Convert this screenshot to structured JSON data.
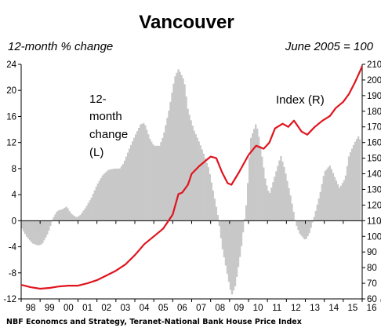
{
  "chart_data": {
    "type": "bar+line",
    "title": "Vancouver",
    "left_axis_label": "12-month % change",
    "right_axis_label": "June 2005 = 100",
    "source": "NBF Economcs and Strategy, Teranet-National Bank House Price Index",
    "annotations": {
      "bars": [
        "12-",
        "month",
        "change",
        "(L)"
      ],
      "line": "Index (R)"
    },
    "x_tick_labels": [
      "98",
      "99",
      "00",
      "01",
      "02",
      "03",
      "04",
      "05",
      "06",
      "07",
      "08",
      "09",
      "10",
      "11",
      "12",
      "13",
      "14",
      "15",
      "16"
    ],
    "x_range": [
      1998.0,
      2016.0
    ],
    "y_left": {
      "range": [
        -12,
        24
      ],
      "ticks": [
        -12,
        -8,
        -4,
        0,
        4,
        8,
        12,
        16,
        20,
        24
      ]
    },
    "y_right": {
      "range": [
        60,
        210
      ],
      "ticks": [
        60,
        70,
        80,
        90,
        100,
        110,
        120,
        130,
        140,
        150,
        160,
        170,
        180,
        190,
        200,
        210
      ]
    },
    "grid": false,
    "colors": {
      "bars": "#c8c8c8",
      "line": "#e0141e",
      "axis": "#000000"
    },
    "series": [
      {
        "name": "12-month change",
        "axis": "left",
        "kind": "bar",
        "points": [
          [
            1998.0,
            -1.0
          ],
          [
            1998.3,
            -2.5
          ],
          [
            1998.6,
            -3.5
          ],
          [
            1998.9,
            -3.8
          ],
          [
            1999.1,
            -3.6
          ],
          [
            1999.4,
            -2.0
          ],
          [
            1999.7,
            0.5
          ],
          [
            1999.9,
            1.5
          ],
          [
            2000.2,
            1.8
          ],
          [
            2000.4,
            2.2
          ],
          [
            2000.6,
            1.2
          ],
          [
            2000.9,
            0.5
          ],
          [
            2001.1,
            0.8
          ],
          [
            2001.4,
            2.0
          ],
          [
            2001.7,
            3.5
          ],
          [
            2002.0,
            5.5
          ],
          [
            2002.3,
            7.0
          ],
          [
            2002.6,
            7.8
          ],
          [
            2002.9,
            8.0
          ],
          [
            2003.2,
            8.0
          ],
          [
            2003.4,
            8.8
          ],
          [
            2003.7,
            11.0
          ],
          [
            2004.0,
            13.0
          ],
          [
            2004.3,
            14.8
          ],
          [
            2004.5,
            15.0
          ],
          [
            2004.8,
            12.5
          ],
          [
            2005.0,
            11.5
          ],
          [
            2005.3,
            11.5
          ],
          [
            2005.5,
            13.0
          ],
          [
            2005.8,
            17.0
          ],
          [
            2006.1,
            22.0
          ],
          [
            2006.3,
            23.3
          ],
          [
            2006.6,
            21.5
          ],
          [
            2006.8,
            17.0
          ],
          [
            2007.1,
            14.0
          ],
          [
            2007.4,
            12.0
          ],
          [
            2007.6,
            10.5
          ],
          [
            2007.9,
            8.0
          ],
          [
            2008.1,
            5.0
          ],
          [
            2008.4,
            0.5
          ],
          [
            2008.6,
            -4.0
          ],
          [
            2008.9,
            -8.5
          ],
          [
            2009.1,
            -11.5
          ],
          [
            2009.3,
            -10.0
          ],
          [
            2009.6,
            -4.5
          ],
          [
            2009.9,
            3.0
          ],
          [
            2010.1,
            12.5
          ],
          [
            2010.4,
            15.0
          ],
          [
            2010.6,
            12.0
          ],
          [
            2010.9,
            6.0
          ],
          [
            2011.1,
            4.0
          ],
          [
            2011.4,
            7.0
          ],
          [
            2011.7,
            10.0
          ],
          [
            2011.9,
            8.0
          ],
          [
            2012.2,
            4.0
          ],
          [
            2012.5,
            -0.5
          ],
          [
            2012.7,
            -2.0
          ],
          [
            2013.0,
            -3.0
          ],
          [
            2013.2,
            -2.0
          ],
          [
            2013.5,
            1.0
          ],
          [
            2013.8,
            4.5
          ],
          [
            2014.0,
            7.5
          ],
          [
            2014.3,
            8.5
          ],
          [
            2014.5,
            7.0
          ],
          [
            2014.8,
            5.0
          ],
          [
            2015.1,
            6.5
          ],
          [
            2015.3,
            10.0
          ],
          [
            2015.6,
            12.0
          ],
          [
            2015.8,
            13.0
          ],
          [
            2015.95,
            12.0
          ]
        ]
      },
      {
        "name": "Index",
        "axis": "right",
        "kind": "line",
        "points": [
          [
            1998.0,
            69
          ],
          [
            1998.5,
            67.5
          ],
          [
            1999.0,
            66.5
          ],
          [
            1999.5,
            67
          ],
          [
            2000.0,
            68
          ],
          [
            2000.5,
            68.5
          ],
          [
            2001.0,
            68.5
          ],
          [
            2001.5,
            70
          ],
          [
            2002.0,
            72
          ],
          [
            2002.5,
            75
          ],
          [
            2003.0,
            78
          ],
          [
            2003.5,
            82
          ],
          [
            2004.0,
            88
          ],
          [
            2004.5,
            95
          ],
          [
            2005.0,
            100
          ],
          [
            2005.5,
            105
          ],
          [
            2006.0,
            114
          ],
          [
            2006.3,
            127
          ],
          [
            2006.5,
            128
          ],
          [
            2006.8,
            133
          ],
          [
            2007.0,
            140
          ],
          [
            2007.4,
            145
          ],
          [
            2007.8,
            149
          ],
          [
            2008.0,
            151
          ],
          [
            2008.3,
            150
          ],
          [
            2008.6,
            141
          ],
          [
            2008.9,
            134
          ],
          [
            2009.1,
            133
          ],
          [
            2009.5,
            141
          ],
          [
            2010.0,
            152
          ],
          [
            2010.4,
            158
          ],
          [
            2010.8,
            156
          ],
          [
            2011.1,
            160
          ],
          [
            2011.4,
            169
          ],
          [
            2011.8,
            172
          ],
          [
            2012.1,
            170
          ],
          [
            2012.4,
            174
          ],
          [
            2012.8,
            167
          ],
          [
            2013.1,
            165
          ],
          [
            2013.5,
            170
          ],
          [
            2013.9,
            174
          ],
          [
            2014.3,
            177
          ],
          [
            2014.6,
            182
          ],
          [
            2015.0,
            186
          ],
          [
            2015.3,
            191
          ],
          [
            2015.6,
            198
          ],
          [
            2015.9,
            206
          ],
          [
            2016.0,
            209
          ]
        ]
      }
    ]
  }
}
